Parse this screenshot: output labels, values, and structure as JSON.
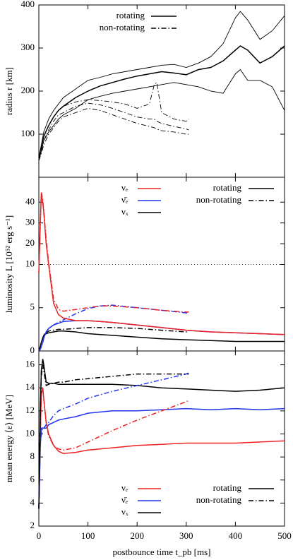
{
  "chart_data": [
    {
      "type": "line",
      "ylabel": "radius r [km]",
      "xlim": [
        0,
        500
      ],
      "xticks": [
        0,
        100,
        200,
        300,
        400,
        500
      ],
      "ylim": [
        0,
        400
      ],
      "yticks": [
        100,
        200,
        300,
        400
      ],
      "model_legend": [
        {
          "name": "rotating",
          "dash": "solid"
        },
        {
          "name": "non-rotating",
          "dash": "dashdot"
        }
      ],
      "series": [
        {
          "color": "#000000",
          "dash": "solid",
          "width": "thin",
          "x": [
            0,
            5,
            10,
            20,
            30,
            40,
            50,
            75,
            100,
            125,
            150,
            175,
            200,
            225,
            250,
            275,
            300,
            325,
            350,
            375,
            400,
            410,
            425,
            450,
            475,
            500
          ],
          "values": [
            45,
            75,
            105,
            135,
            155,
            170,
            185,
            205,
            225,
            232,
            240,
            245,
            250,
            255,
            260,
            262,
            255,
            265,
            280,
            310,
            370,
            385,
            365,
            320,
            340,
            375
          ]
        },
        {
          "color": "#000000",
          "dash": "solid",
          "width": "thick",
          "x": [
            0,
            5,
            10,
            20,
            30,
            40,
            50,
            75,
            100,
            125,
            150,
            175,
            200,
            225,
            250,
            275,
            300,
            325,
            350,
            375,
            400,
            410,
            425,
            450,
            475,
            500
          ],
          "values": [
            45,
            70,
            95,
            120,
            140,
            155,
            165,
            185,
            200,
            212,
            220,
            228,
            235,
            240,
            245,
            242,
            238,
            250,
            255,
            270,
            295,
            305,
            295,
            265,
            280,
            305
          ]
        },
        {
          "color": "#000000",
          "dash": "solid",
          "width": "thin",
          "x": [
            0,
            5,
            10,
            20,
            30,
            40,
            50,
            75,
            100,
            125,
            150,
            175,
            200,
            225,
            250,
            275,
            300,
            325,
            350,
            375,
            400,
            410,
            425,
            450,
            475,
            500
          ],
          "values": [
            40,
            60,
            85,
            105,
            120,
            135,
            145,
            160,
            180,
            188,
            195,
            200,
            205,
            210,
            215,
            220,
            215,
            210,
            200,
            195,
            240,
            250,
            225,
            225,
            210,
            155
          ]
        },
        {
          "color": "#000000",
          "dash": "dashdot",
          "width": "thin",
          "x": [
            0,
            5,
            10,
            20,
            30,
            40,
            50,
            75,
            100,
            125,
            150,
            175,
            200,
            225,
            235,
            240,
            250,
            275,
            300,
            305
          ],
          "values": [
            40,
            65,
            95,
            120,
            140,
            155,
            165,
            175,
            180,
            178,
            175,
            170,
            160,
            170,
            215,
            220,
            150,
            135,
            130,
            135
          ]
        },
        {
          "color": "#000000",
          "dash": "dashdot",
          "width": "thin",
          "x": [
            0,
            5,
            10,
            20,
            30,
            40,
            50,
            75,
            100,
            125,
            150,
            175,
            200,
            225,
            235,
            240,
            250,
            275,
            300,
            305
          ],
          "values": [
            40,
            60,
            85,
            110,
            130,
            145,
            150,
            165,
            172,
            168,
            160,
            150,
            140,
            135,
            135,
            130,
            125,
            118,
            112,
            110
          ]
        },
        {
          "color": "#000000",
          "dash": "dashdot",
          "width": "thin",
          "x": [
            0,
            5,
            10,
            20,
            30,
            40,
            50,
            75,
            100,
            125,
            150,
            175,
            200,
            225,
            235,
            240,
            250,
            275,
            300,
            305
          ],
          "values": [
            38,
            55,
            75,
            100,
            115,
            130,
            140,
            150,
            160,
            155,
            145,
            135,
            125,
            118,
            115,
            112,
            108,
            105,
            100,
            100
          ]
        }
      ]
    },
    {
      "type": "line",
      "ylabel": "luminosity L [10⁵² erg s⁻¹]",
      "xlim": [
        0,
        500
      ],
      "xticks": [
        0,
        100,
        200,
        300,
        400,
        500
      ],
      "ylim": [
        0,
        52
      ],
      "yticks": [
        0,
        5,
        10,
        20,
        30,
        40
      ],
      "y_break": 10,
      "flavor_legend": [
        {
          "name": "νₑ",
          "color": "#ee2222"
        },
        {
          "name": "ν̄ₑ",
          "color": "#2233ee"
        },
        {
          "name": "νₓ",
          "color": "#000000"
        }
      ],
      "model_legend": [
        {
          "name": "rotating",
          "dash": "solid"
        },
        {
          "name": "non-rotating",
          "dash": "dashdot"
        }
      ],
      "series": [
        {
          "color": "#000000",
          "dash": "solid",
          "width": "thick",
          "x": [
            0,
            3,
            5,
            8,
            10,
            15,
            20,
            30,
            40,
            50,
            75,
            100,
            125,
            150,
            200,
            250,
            300,
            350,
            400,
            450,
            500
          ],
          "values": [
            0,
            0.5,
            1,
            1.5,
            1.8,
            2.0,
            2.1,
            2.2,
            2.3,
            2.3,
            2.2,
            2.0,
            1.9,
            1.8,
            1.6,
            1.4,
            1.3,
            1.2,
            1.1,
            1.1,
            1.1
          ]
        },
        {
          "color": "#000000",
          "dash": "dashdot",
          "width": "thick",
          "x": [
            0,
            3,
            5,
            8,
            10,
            15,
            20,
            30,
            40,
            50,
            75,
            100,
            125,
            150,
            200,
            250,
            300,
            305
          ],
          "values": [
            0,
            0.5,
            1,
            1.5,
            1.9,
            2.1,
            2.3,
            2.4,
            2.5,
            2.5,
            2.6,
            2.7,
            2.7,
            2.7,
            2.6,
            2.4,
            2.2,
            2.2
          ]
        },
        {
          "color": "#2233ee",
          "dash": "solid",
          "width": "thick",
          "x": [
            0,
            3,
            5,
            8,
            10,
            15,
            20,
            30,
            40,
            50,
            75,
            100,
            125,
            150,
            200,
            250,
            300,
            350,
            400,
            450,
            500
          ],
          "values": [
            0,
            0.2,
            0.5,
            1,
            1.5,
            2.2,
            2.6,
            3.0,
            3.2,
            3.4,
            3.5,
            3.5,
            3.4,
            3.3,
            3.0,
            2.7,
            2.4,
            2.2,
            2.1,
            2.0,
            1.9
          ]
        },
        {
          "color": "#2233ee",
          "dash": "dashdot",
          "width": "thick",
          "x": [
            0,
            3,
            5,
            8,
            10,
            15,
            20,
            30,
            40,
            50,
            75,
            100,
            125,
            150,
            200,
            250,
            300,
            305
          ],
          "values": [
            0,
            0.2,
            0.5,
            1,
            1.5,
            2.2,
            2.6,
            3.0,
            3.3,
            3.6,
            4.3,
            4.9,
            5.2,
            5.3,
            5.0,
            4.7,
            4.4,
            4.3
          ]
        },
        {
          "color": "#ee2222",
          "dash": "solid",
          "width": "thick",
          "x": [
            0,
            3,
            5,
            8,
            10,
            15,
            20,
            30,
            40,
            50,
            75,
            100,
            125,
            150,
            200,
            250,
            300,
            350,
            400,
            450,
            500
          ],
          "values": [
            9,
            30,
            44,
            40,
            35,
            20,
            10,
            5.5,
            4.2,
            3.8,
            3.5,
            3.5,
            3.4,
            3.3,
            3.0,
            2.7,
            2.4,
            2.2,
            2.1,
            2.0,
            1.9
          ]
        },
        {
          "color": "#ee2222",
          "dash": "dashdot",
          "width": "thick",
          "x": [
            0,
            3,
            5,
            8,
            10,
            15,
            20,
            30,
            40,
            50,
            75,
            100,
            125,
            150,
            200,
            250,
            300,
            305
          ],
          "values": [
            9,
            30,
            45,
            41,
            36,
            22,
            11,
            6,
            4.8,
            4.6,
            4.8,
            5.0,
            5.2,
            5.2,
            5.0,
            4.7,
            4.5,
            4.5
          ]
        }
      ]
    },
    {
      "type": "line",
      "ylabel": "mean energy ⟨ε⟩ [MeV]",
      "xlabel": "postbounce time t_pb [ms]",
      "xlim": [
        0,
        500
      ],
      "xticks": [
        0,
        100,
        200,
        300,
        400,
        500
      ],
      "ylim": [
        2,
        17.2
      ],
      "yticks": [
        2,
        4,
        6,
        8,
        10,
        12,
        14,
        16
      ],
      "flavor_legend": [
        {
          "name": "νₑ",
          "color": "#ee2222"
        },
        {
          "name": "ν̄ₑ",
          "color": "#2233ee"
        },
        {
          "name": "νₓ",
          "color": "#000000"
        }
      ],
      "model_legend": [
        {
          "name": "rotating",
          "dash": "solid"
        },
        {
          "name": "non-rotating",
          "dash": "dashdot"
        }
      ],
      "series": [
        {
          "color": "#ee2222",
          "dash": "solid",
          "width": "thick",
          "x": [
            0,
            3,
            5,
            8,
            10,
            15,
            20,
            30,
            40,
            50,
            75,
            100,
            150,
            200,
            250,
            300,
            350,
            400,
            450,
            500
          ],
          "values": [
            3.5,
            10,
            13.5,
            14,
            13,
            11,
            10,
            9,
            8.5,
            8.3,
            8.4,
            8.6,
            8.8,
            9.0,
            9.1,
            9.2,
            9.2,
            9.2,
            9.3,
            9.4
          ]
        },
        {
          "color": "#2233ee",
          "dash": "solid",
          "width": "thick",
          "x": [
            0,
            3,
            5,
            8,
            10,
            15,
            20,
            30,
            40,
            50,
            75,
            100,
            150,
            200,
            250,
            300,
            350,
            400,
            450,
            500
          ],
          "values": [
            3.5,
            9,
            10.5,
            10.5,
            10.5,
            10.5,
            10.8,
            11,
            11.2,
            11.3,
            11.5,
            11.8,
            12.0,
            12.0,
            12.1,
            12.2,
            12.1,
            12.2,
            12.1,
            12.2
          ]
        },
        {
          "color": "#000000",
          "dash": "solid",
          "width": "thick",
          "x": [
            0,
            3,
            5,
            8,
            10,
            15,
            20,
            30,
            40,
            50,
            75,
            100,
            150,
            200,
            250,
            300,
            350,
            400,
            450,
            500
          ],
          "values": [
            3.5,
            12,
            15.5,
            16.5,
            16,
            14.5,
            14.4,
            14.4,
            14.3,
            14.3,
            14.3,
            14.3,
            14.3,
            14.2,
            14.0,
            13.9,
            13.8,
            13.7,
            13.8,
            14.0
          ]
        },
        {
          "color": "#ee2222",
          "dash": "dashdot",
          "width": "thick",
          "x": [
            0,
            3,
            5,
            8,
            10,
            15,
            20,
            30,
            40,
            50,
            75,
            100,
            150,
            200,
            250,
            300,
            305
          ],
          "values": [
            3.5,
            10,
            13.5,
            14,
            13,
            11,
            9.8,
            9,
            8.7,
            8.6,
            8.8,
            9.3,
            10.3,
            11.2,
            12.0,
            12.8,
            12.9
          ]
        },
        {
          "color": "#2233ee",
          "dash": "dashdot",
          "width": "thick",
          "x": [
            0,
            3,
            5,
            8,
            10,
            15,
            20,
            30,
            40,
            50,
            75,
            100,
            150,
            200,
            250,
            300,
            305
          ],
          "values": [
            3.5,
            9,
            10,
            10.5,
            10.5,
            10.8,
            11,
            11.6,
            12.0,
            12.2,
            12.6,
            13.1,
            13.7,
            14.2,
            14.7,
            15.2,
            15.3
          ]
        },
        {
          "color": "#000000",
          "dash": "dashdot",
          "width": "thick",
          "x": [
            0,
            3,
            5,
            8,
            10,
            15,
            20,
            30,
            40,
            50,
            75,
            100,
            150,
            200,
            250,
            300,
            305
          ],
          "values": [
            3.5,
            12,
            15,
            16,
            15.5,
            14.2,
            14.3,
            14.4,
            14.5,
            14.5,
            14.7,
            14.8,
            15.0,
            15.2,
            15.2,
            15.2,
            15.2
          ]
        }
      ]
    }
  ]
}
